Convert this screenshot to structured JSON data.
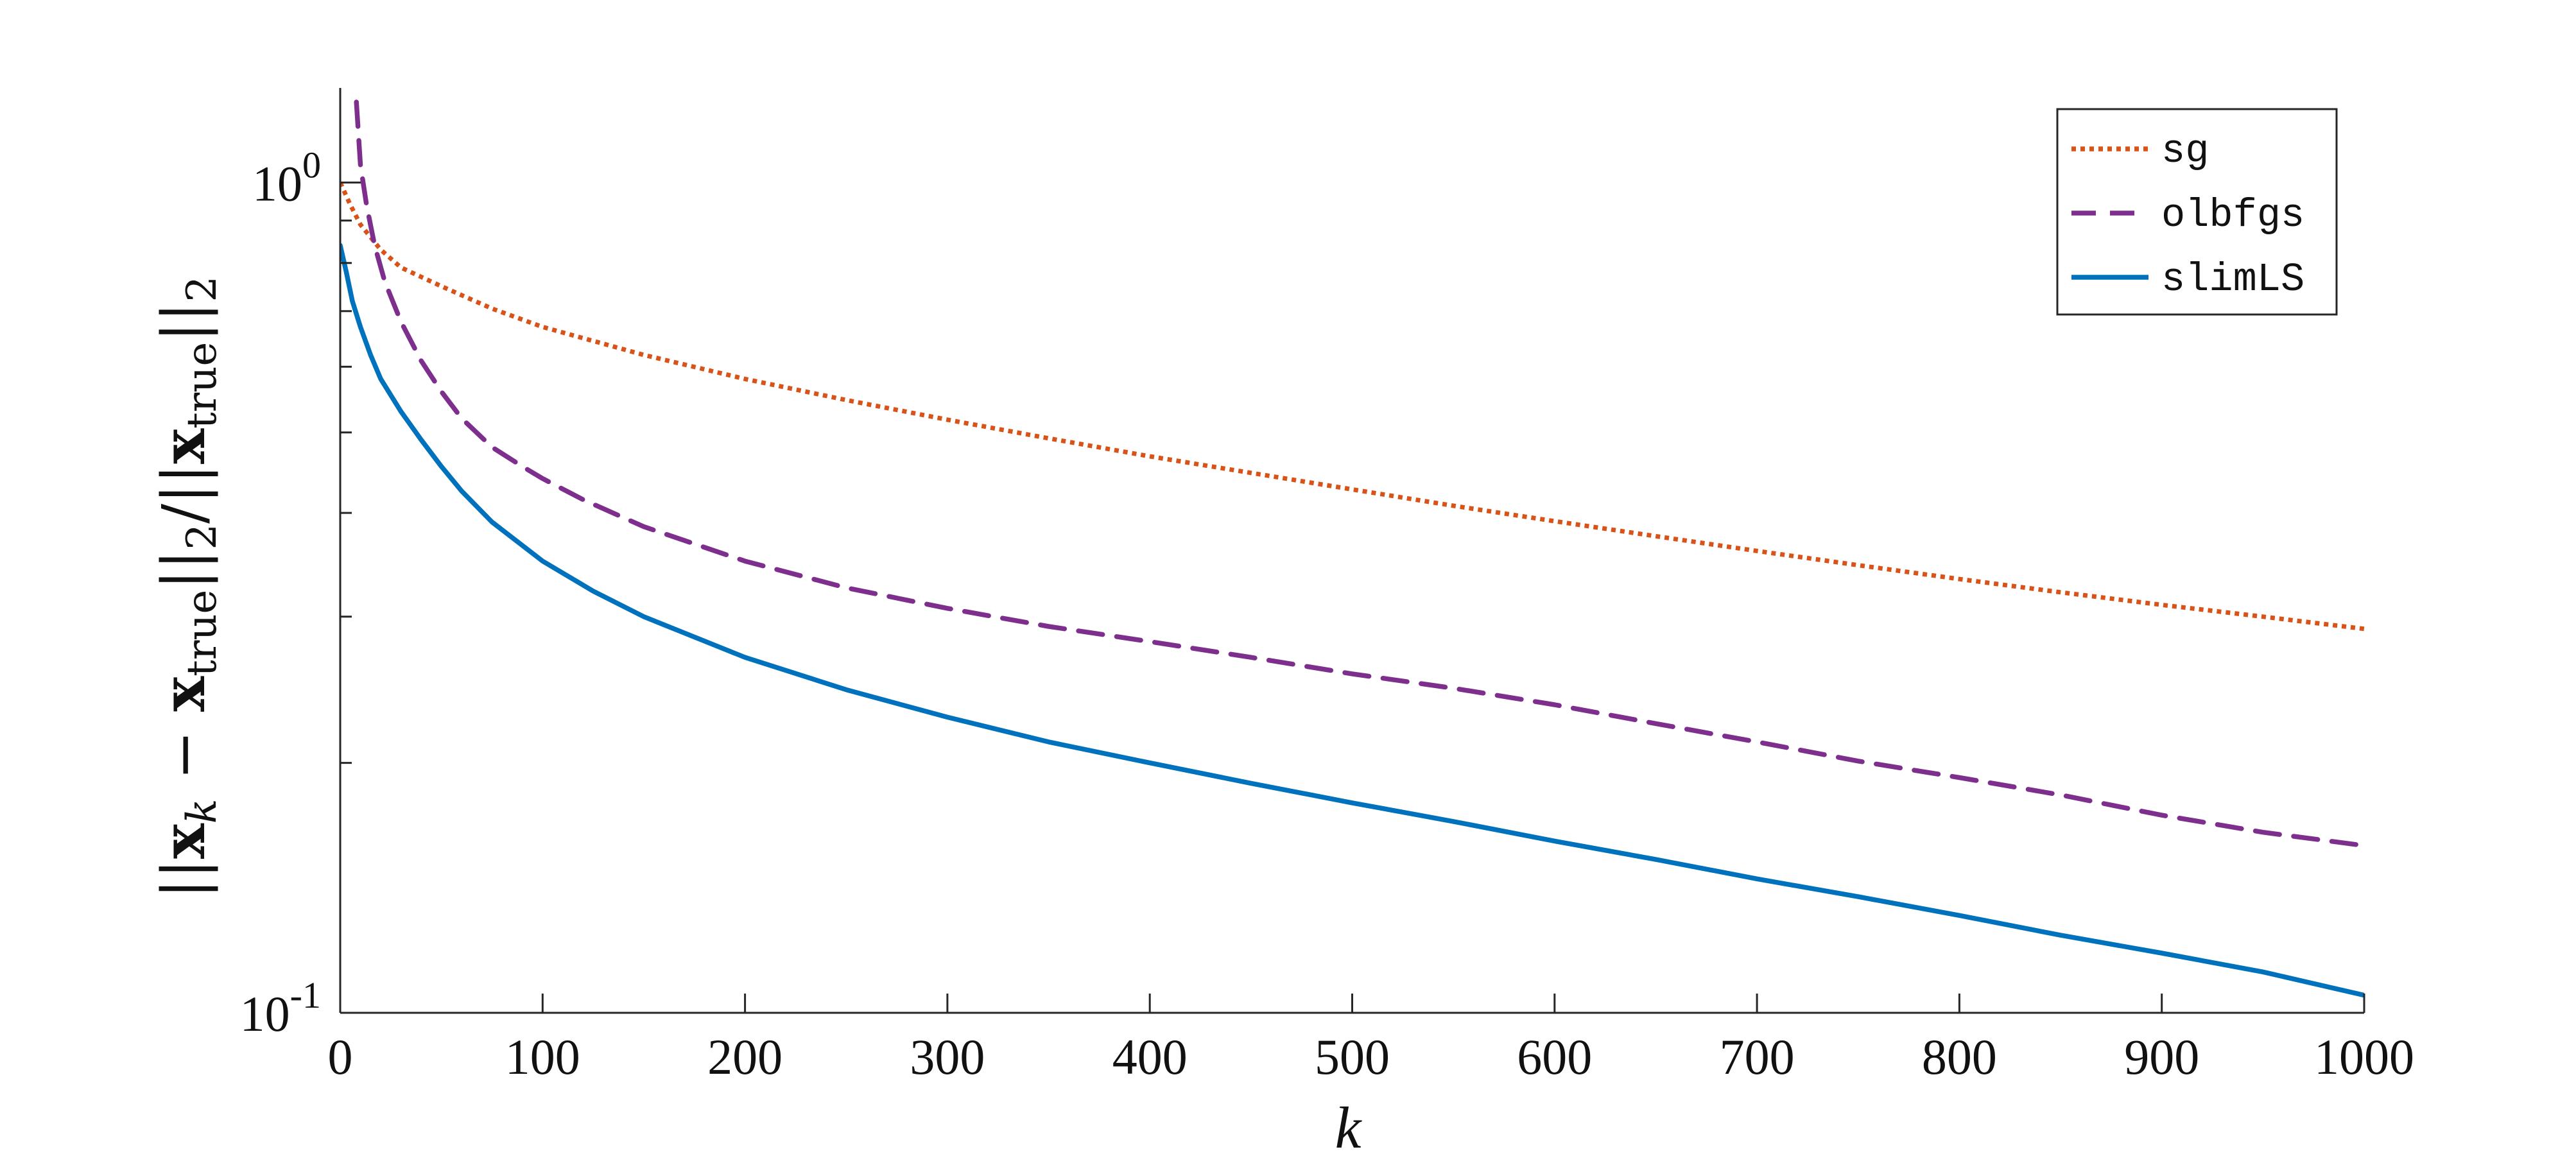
{
  "chart_data": {
    "type": "line",
    "xlabel": "k",
    "ylabel": {
      "open": "||",
      "x1": "x",
      "sub1": "k",
      "minus": " − ",
      "x2": "x",
      "sub2": "true",
      "mid": "||",
      "sub3": "2",
      "slash": "/||",
      "x3": "x",
      "sub4": "true",
      "close": "||",
      "sub5": "2"
    },
    "x_ticks": [
      "0",
      "100",
      "200",
      "300",
      "400",
      "500",
      "600",
      "700",
      "800",
      "900",
      "1000"
    ],
    "y_ticks": [
      {
        "base": "10",
        "exp": "0",
        "value": 1.0
      },
      {
        "base": "10",
        "exp": "-1",
        "value": 0.1
      }
    ],
    "xlim": [
      0,
      1000
    ],
    "ylim": [
      0.1,
      1.3
    ],
    "yscale": "log",
    "grid": false,
    "legend_position": "top-right",
    "series": [
      {
        "name": "sg",
        "color": "#D95319",
        "style": "dotted",
        "x": [
          0,
          5,
          10,
          20,
          30,
          50,
          75,
          100,
          150,
          200,
          250,
          300,
          350,
          400,
          450,
          500,
          550,
          600,
          650,
          700,
          750,
          800,
          850,
          900,
          950,
          1000
        ],
        "y": [
          1.0,
          0.94,
          0.89,
          0.83,
          0.79,
          0.75,
          0.705,
          0.67,
          0.62,
          0.58,
          0.547,
          0.518,
          0.492,
          0.468,
          0.447,
          0.427,
          0.408,
          0.391,
          0.375,
          0.36,
          0.346,
          0.333,
          0.321,
          0.31,
          0.3,
          0.29
        ]
      },
      {
        "name": "olbfgs",
        "color": "#7E2F8E",
        "style": "dashed",
        "x": [
          8,
          10,
          13,
          17,
          22,
          30,
          40,
          50,
          60,
          75,
          90,
          100,
          120,
          150,
          200,
          250,
          300,
          350,
          400,
          450,
          500,
          550,
          600,
          650,
          700,
          750,
          800,
          850,
          900,
          950,
          1000
        ],
        "y": [
          1.25,
          1.05,
          0.94,
          0.84,
          0.76,
          0.68,
          0.61,
          0.56,
          0.52,
          0.48,
          0.455,
          0.44,
          0.415,
          0.385,
          0.35,
          0.325,
          0.307,
          0.292,
          0.28,
          0.268,
          0.256,
          0.246,
          0.235,
          0.223,
          0.212,
          0.201,
          0.192,
          0.183,
          0.173,
          0.165,
          0.159
        ]
      },
      {
        "name": "slimLS",
        "color": "#0072BD",
        "style": "solid",
        "x": [
          0,
          3,
          6,
          10,
          15,
          20,
          30,
          40,
          50,
          60,
          75,
          100,
          125,
          150,
          200,
          250,
          300,
          350,
          400,
          450,
          500,
          550,
          600,
          650,
          700,
          750,
          800,
          850,
          900,
          950,
          1000
        ],
        "y": [
          0.84,
          0.78,
          0.72,
          0.67,
          0.62,
          0.58,
          0.53,
          0.49,
          0.455,
          0.425,
          0.39,
          0.35,
          0.322,
          0.3,
          0.268,
          0.245,
          0.227,
          0.212,
          0.2,
          0.189,
          0.179,
          0.17,
          0.161,
          0.153,
          0.145,
          0.138,
          0.131,
          0.124,
          0.118,
          0.112,
          0.105
        ]
      }
    ]
  }
}
